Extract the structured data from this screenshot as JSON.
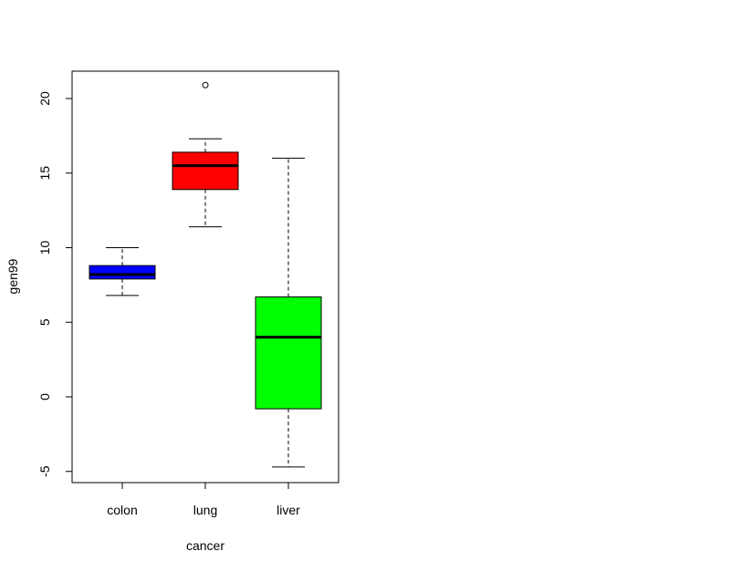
{
  "chart_data": {
    "type": "box",
    "xlabel": "cancer",
    "ylabel": "gen99",
    "ylim": [
      -6,
      22
    ],
    "yticks": [
      -5,
      0,
      5,
      10,
      15,
      20
    ],
    "categories": [
      "colon",
      "lung",
      "liver"
    ],
    "boxes": [
      {
        "category": "colon",
        "color": "#0000ff",
        "whisker_low": 6.8,
        "q1": 7.9,
        "median": 8.2,
        "q3": 8.8,
        "whisker_high": 10.0,
        "outliers": []
      },
      {
        "category": "lung",
        "color": "#ff0000",
        "whisker_low": 11.4,
        "q1": 13.9,
        "median": 15.5,
        "q3": 16.4,
        "whisker_high": 17.3,
        "outliers": [
          20.9
        ]
      },
      {
        "category": "liver",
        "color": "#00ff00",
        "whisker_low": -4.7,
        "q1": -0.8,
        "median": 4.0,
        "q3": 6.7,
        "whisker_high": 16.0,
        "outliers": []
      }
    ]
  }
}
